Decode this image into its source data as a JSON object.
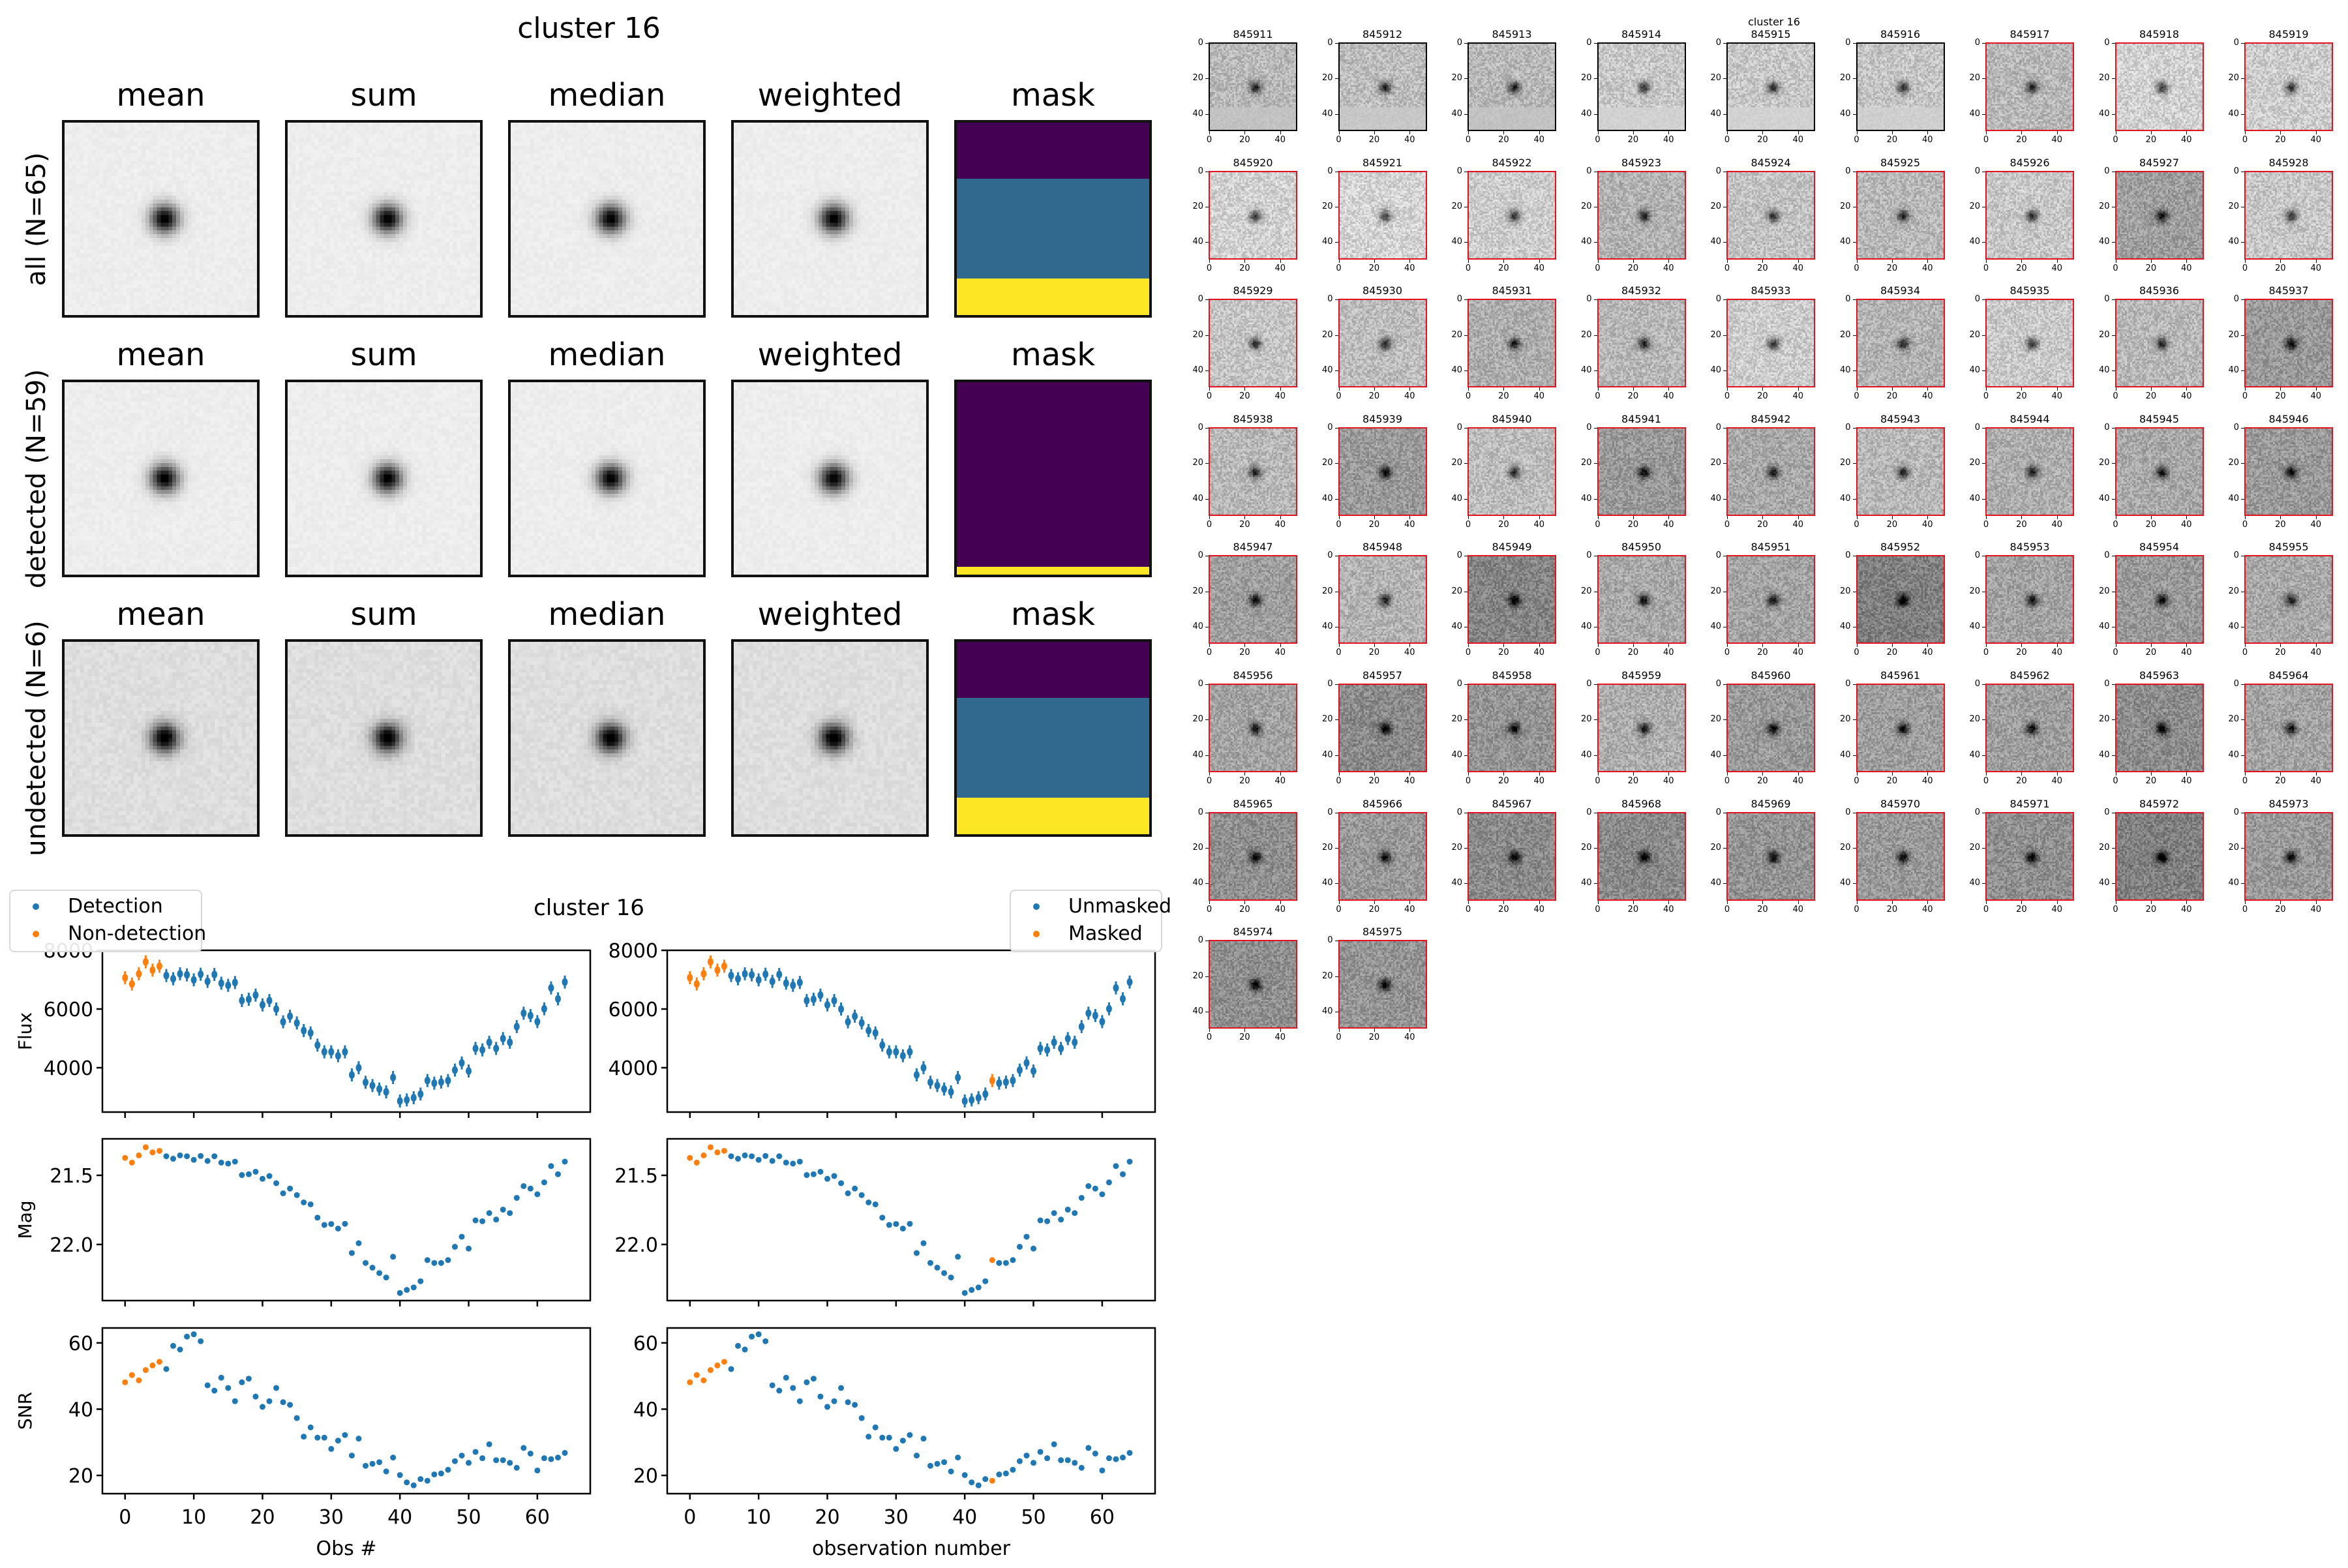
{
  "stack_figure": {
    "title": "cluster 16",
    "column_titles": [
      "mean",
      "sum",
      "median",
      "weighted",
      "mask"
    ],
    "rows": [
      {
        "label": "all (N=65)",
        "mask_bands": [
          {
            "color": "#440154",
            "frac": 0.29
          },
          {
            "color": "#31688e",
            "frac": 0.52
          },
          {
            "color": "#fde725",
            "frac": 0.19
          }
        ]
      },
      {
        "label": "detected (N=59)",
        "mask_bands": [
          {
            "color": "#440154",
            "frac": 0.96
          },
          {
            "color": "#fde725",
            "frac": 0.04
          }
        ]
      },
      {
        "label": "undetected (N=6)",
        "mask_bands": [
          {
            "color": "#440154",
            "frac": 0.29
          },
          {
            "color": "#31688e",
            "frac": 0.52
          },
          {
            "color": "#fde725",
            "frac": 0.19
          }
        ]
      }
    ]
  },
  "thumbnail_grid": {
    "title": "cluster 16",
    "axis_ticks": [
      "0",
      "20",
      "40"
    ],
    "items": [
      {
        "id": "845911",
        "border": "black",
        "bg": 0.72
      },
      {
        "id": "845912",
        "border": "black",
        "bg": 0.74
      },
      {
        "id": "845913",
        "border": "black",
        "bg": 0.72
      },
      {
        "id": "845914",
        "border": "black",
        "bg": 0.78
      },
      {
        "id": "845915",
        "border": "black",
        "bg": 0.78
      },
      {
        "id": "845916",
        "border": "black",
        "bg": 0.77
      },
      {
        "id": "845917",
        "border": "red",
        "bg": 0.72
      },
      {
        "id": "845918",
        "border": "red",
        "bg": 0.82
      },
      {
        "id": "845919",
        "border": "red",
        "bg": 0.8
      },
      {
        "id": "845920",
        "border": "red",
        "bg": 0.82
      },
      {
        "id": "845921",
        "border": "red",
        "bg": 0.83
      },
      {
        "id": "845922",
        "border": "red",
        "bg": 0.8
      },
      {
        "id": "845923",
        "border": "red",
        "bg": 0.7
      },
      {
        "id": "845924",
        "border": "red",
        "bg": 0.76
      },
      {
        "id": "845925",
        "border": "red",
        "bg": 0.72
      },
      {
        "id": "845926",
        "border": "red",
        "bg": 0.78
      },
      {
        "id": "845927",
        "border": "red",
        "bg": 0.62
      },
      {
        "id": "845928",
        "border": "red",
        "bg": 0.78
      },
      {
        "id": "845929",
        "border": "red",
        "bg": 0.77
      },
      {
        "id": "845930",
        "border": "red",
        "bg": 0.74
      },
      {
        "id": "845931",
        "border": "red",
        "bg": 0.68
      },
      {
        "id": "845932",
        "border": "red",
        "bg": 0.72
      },
      {
        "id": "845933",
        "border": "red",
        "bg": 0.8
      },
      {
        "id": "845934",
        "border": "red",
        "bg": 0.7
      },
      {
        "id": "845935",
        "border": "red",
        "bg": 0.79
      },
      {
        "id": "845936",
        "border": "red",
        "bg": 0.72
      },
      {
        "id": "845937",
        "border": "red",
        "bg": 0.6
      },
      {
        "id": "845938",
        "border": "red",
        "bg": 0.72
      },
      {
        "id": "845939",
        "border": "red",
        "bg": 0.6
      },
      {
        "id": "845940",
        "border": "red",
        "bg": 0.74
      },
      {
        "id": "845941",
        "border": "red",
        "bg": 0.6
      },
      {
        "id": "845942",
        "border": "red",
        "bg": 0.66
      },
      {
        "id": "845943",
        "border": "red",
        "bg": 0.72
      },
      {
        "id": "845944",
        "border": "red",
        "bg": 0.68
      },
      {
        "id": "845945",
        "border": "red",
        "bg": 0.66
      },
      {
        "id": "845946",
        "border": "red",
        "bg": 0.6
      },
      {
        "id": "845947",
        "border": "red",
        "bg": 0.62
      },
      {
        "id": "845948",
        "border": "red",
        "bg": 0.7
      },
      {
        "id": "845949",
        "border": "red",
        "bg": 0.52
      },
      {
        "id": "845950",
        "border": "red",
        "bg": 0.66
      },
      {
        "id": "845951",
        "border": "red",
        "bg": 0.64
      },
      {
        "id": "845952",
        "border": "red",
        "bg": 0.5
      },
      {
        "id": "845953",
        "border": "red",
        "bg": 0.64
      },
      {
        "id": "845954",
        "border": "red",
        "bg": 0.6
      },
      {
        "id": "845955",
        "border": "red",
        "bg": 0.66
      },
      {
        "id": "845956",
        "border": "red",
        "bg": 0.64
      },
      {
        "id": "845957",
        "border": "red",
        "bg": 0.54
      },
      {
        "id": "845958",
        "border": "red",
        "bg": 0.58
      },
      {
        "id": "845959",
        "border": "red",
        "bg": 0.68
      },
      {
        "id": "845960",
        "border": "red",
        "bg": 0.6
      },
      {
        "id": "845961",
        "border": "red",
        "bg": 0.62
      },
      {
        "id": "845962",
        "border": "red",
        "bg": 0.62
      },
      {
        "id": "845963",
        "border": "red",
        "bg": 0.55
      },
      {
        "id": "845964",
        "border": "red",
        "bg": 0.64
      },
      {
        "id": "845965",
        "border": "red",
        "bg": 0.56
      },
      {
        "id": "845966",
        "border": "red",
        "bg": 0.6
      },
      {
        "id": "845967",
        "border": "red",
        "bg": 0.54
      },
      {
        "id": "845968",
        "border": "red",
        "bg": 0.54
      },
      {
        "id": "845969",
        "border": "red",
        "bg": 0.58
      },
      {
        "id": "845970",
        "border": "red",
        "bg": 0.6
      },
      {
        "id": "845971",
        "border": "red",
        "bg": 0.56
      },
      {
        "id": "845972",
        "border": "red",
        "bg": 0.5
      },
      {
        "id": "845973",
        "border": "red",
        "bg": 0.6
      },
      {
        "id": "845974",
        "border": "red",
        "bg": 0.56
      },
      {
        "id": "845975",
        "border": "red",
        "bg": 0.58
      }
    ]
  },
  "chart_data": {
    "type": "scatter",
    "title": "cluster 16",
    "x": [
      0,
      1,
      2,
      3,
      4,
      5,
      6,
      7,
      8,
      9,
      10,
      11,
      12,
      13,
      14,
      15,
      16,
      17,
      18,
      19,
      20,
      21,
      22,
      23,
      24,
      25,
      26,
      27,
      28,
      29,
      30,
      31,
      32,
      33,
      34,
      35,
      36,
      37,
      38,
      39,
      40,
      41,
      42,
      43,
      44,
      45,
      46,
      47,
      48,
      49,
      50,
      51,
      52,
      53,
      54,
      55,
      56,
      57,
      58,
      59,
      60,
      61,
      62,
      63,
      64
    ],
    "xlim": [
      -3.3,
      67.7
    ],
    "xticks": [
      "0",
      "10",
      "20",
      "30",
      "40",
      "50",
      "60"
    ],
    "xtick_values": [
      0,
      10,
      20,
      30,
      40,
      50,
      60
    ],
    "colors": {
      "blue": "#1f77b4",
      "orange": "#ff7f0e"
    },
    "columns": [
      {
        "xlabel": "Obs #",
        "legend": {
          "placement": "upper-left",
          "entries": [
            "Detection",
            "Non-detection"
          ]
        },
        "orange_indices": [
          0,
          1,
          2,
          3,
          4,
          5
        ]
      },
      {
        "xlabel": "observation number",
        "legend": {
          "placement": "upper-right",
          "entries": [
            "Unmasked",
            "Masked"
          ]
        },
        "orange_indices": [
          0,
          1,
          2,
          3,
          4,
          5,
          44
        ]
      }
    ],
    "panels": [
      {
        "ylabel": "Flux",
        "ylim": [
          2489,
          8000
        ],
        "inverted": false,
        "errorbars": true,
        "yticks": [
          "4000",
          "6000",
          "8000"
        ],
        "ytick_values": [
          4000,
          6000,
          8000
        ],
        "values": [
          7067,
          6852,
          7200,
          7607,
          7326,
          7459,
          7141,
          7030,
          7200,
          7163,
          6993,
          7185,
          6941,
          7178,
          6881,
          6807,
          6904,
          6289,
          6333,
          6474,
          6141,
          6289,
          6000,
          5563,
          5756,
          5526,
          5267,
          5185,
          4770,
          4541,
          4541,
          4407,
          4541,
          3756,
          4000,
          3504,
          3393,
          3274,
          3178,
          3667,
          2867,
          2904,
          2978,
          3104,
          3563,
          3474,
          3511,
          3563,
          3919,
          4163,
          3889,
          4659,
          4607,
          4867,
          4659,
          4993,
          4867,
          5400,
          5859,
          5778,
          5570,
          6007,
          6719,
          6348,
          6919
        ]
      },
      {
        "ylabel": "Mag",
        "ylim": [
          21.236,
          22.406
        ],
        "inverted": true,
        "errorbars": false,
        "yticks": [
          "21.5",
          "22.0"
        ],
        "ytick_values": [
          21.5,
          22.0
        ],
        "values": [
          21.374,
          21.408,
          21.356,
          21.297,
          21.334,
          21.323,
          21.362,
          21.38,
          21.356,
          21.362,
          21.388,
          21.36,
          21.396,
          21.362,
          21.408,
          21.415,
          21.401,
          21.498,
          21.492,
          21.474,
          21.525,
          21.505,
          21.557,
          21.63,
          21.596,
          21.643,
          21.696,
          21.71,
          21.806,
          21.859,
          21.852,
          21.885,
          21.851,
          22.062,
          21.991,
          22.134,
          22.168,
          22.207,
          22.239,
          22.089,
          22.351,
          22.329,
          22.311,
          22.266,
          22.113,
          22.134,
          22.134,
          22.113,
          22.017,
          21.944,
          22.03,
          21.826,
          21.832,
          21.773,
          21.82,
          21.748,
          21.773,
          21.663,
          21.578,
          21.596,
          21.637,
          21.551,
          21.433,
          21.492,
          21.401
        ]
      },
      {
        "ylabel": "SNR",
        "ylim": [
          14.5,
          64.5
        ],
        "inverted": false,
        "errorbars": false,
        "yticks": [
          "20",
          "40",
          "60"
        ],
        "ytick_values": [
          20,
          40,
          60
        ],
        "values": [
          48.1,
          50.3,
          48.7,
          51.8,
          53.2,
          54.3,
          52.1,
          59.1,
          58.0,
          61.9,
          62.6,
          60.5,
          47.2,
          45.6,
          49.5,
          46.4,
          42.4,
          48.1,
          49.2,
          43.8,
          40.7,
          42.4,
          46.4,
          42.1,
          41.3,
          37.3,
          31.7,
          34.5,
          31.4,
          31.4,
          28.0,
          30.5,
          32.2,
          26.0,
          31.1,
          22.9,
          23.5,
          24.0,
          21.2,
          25.4,
          20.1,
          17.9,
          17.0,
          18.9,
          18.4,
          20.3,
          20.6,
          21.7,
          24.3,
          26.0,
          23.8,
          27.1,
          25.2,
          29.4,
          24.6,
          24.6,
          23.8,
          22.3,
          28.3,
          26.6,
          21.5,
          25.2,
          24.9,
          25.4,
          26.8
        ]
      }
    ]
  }
}
